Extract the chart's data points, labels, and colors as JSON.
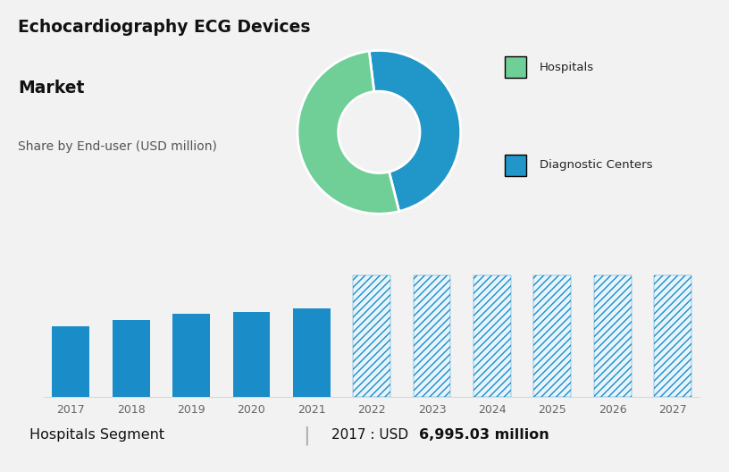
{
  "title_line1": "Echocardiography ECG Devices",
  "title_line2": "Market",
  "subtitle": "Share by End-user (USD million)",
  "top_bg_color": "#cdd2dc",
  "bottom_bg_color": "#f2f2f2",
  "donut_colors": [
    "#2196c8",
    "#6fcf97"
  ],
  "donut_labels": [
    "Diagnostic Centers",
    "Hospitals"
  ],
  "donut_values": [
    48,
    52
  ],
  "bar_years_solid": [
    2017,
    2018,
    2019,
    2020,
    2021
  ],
  "bar_heights_solid": [
    55,
    60,
    65,
    66,
    69
  ],
  "bar_years_hatched": [
    2022,
    2023,
    2024,
    2025,
    2026,
    2027
  ],
  "bar_heights_hatched": [
    95,
    95,
    95,
    95,
    95,
    95
  ],
  "bar_color_solid": "#1a8dc8",
  "bar_hatch_color": "#1a8dc8",
  "footer_left": "Hospitals Segment",
  "footer_right_normal": "2017 : USD ",
  "footer_right_bold": "6,995.03 million",
  "footer_separator": "|",
  "grid_color": "#d8d8d8",
  "axis_label_color": "#666666",
  "ylim_max": 100
}
